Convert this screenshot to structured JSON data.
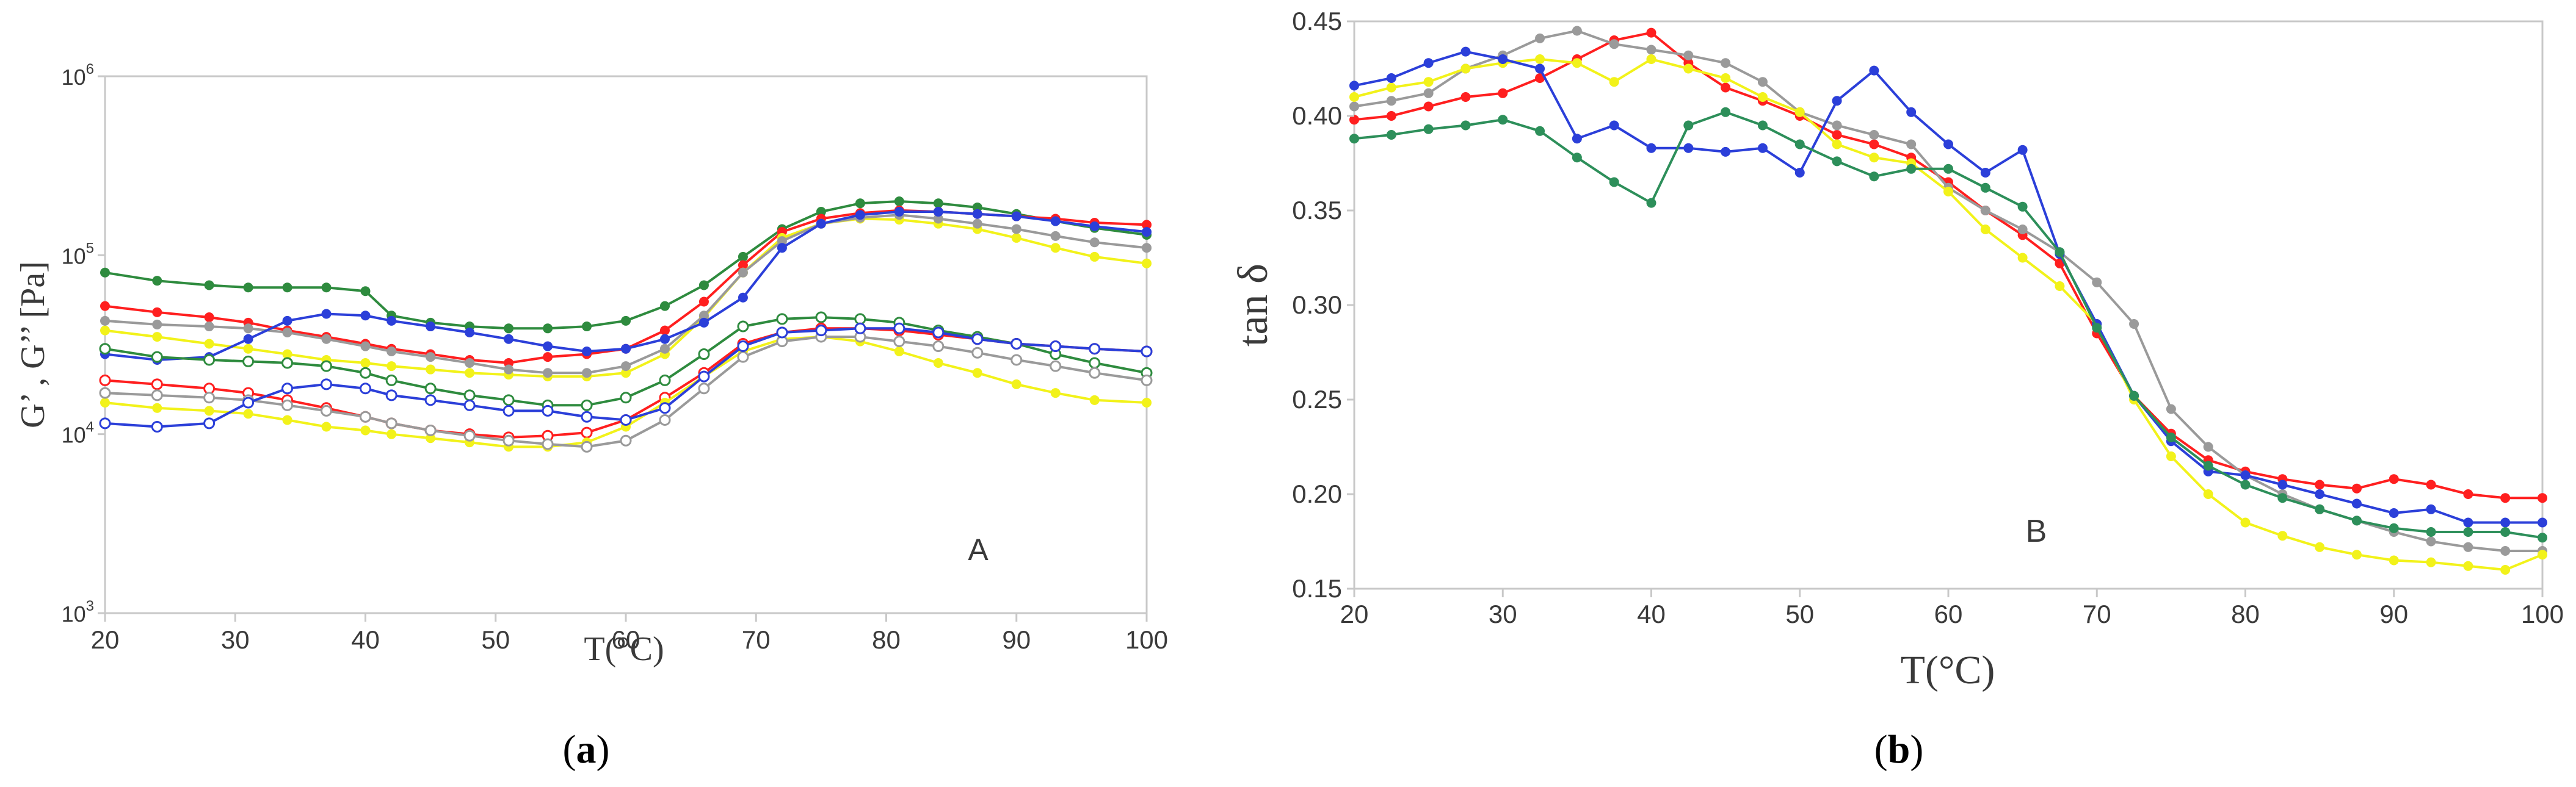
{
  "colors": {
    "green": "#2e8b3e",
    "red": "#ff1f1f",
    "yellow": "#f2f21a",
    "gray": "#9a9a9a",
    "blue": "#2b3fd9",
    "teal_green": "#2d8f5a"
  },
  "chart_data": [
    {
      "id": "a",
      "type": "line",
      "yscale": "log",
      "panel_letter": "A",
      "caption": {
        "open": "(",
        "letter": "a",
        "close": ")"
      },
      "xlabel": "T(°C)",
      "ylabel": "G’ , G’’ [Pa]",
      "xlim": [
        20,
        100
      ],
      "ylim": [
        1000,
        1000000
      ],
      "xticks": [
        "20",
        "30",
        "40",
        "50",
        "60",
        "70",
        "80",
        "90",
        "100"
      ],
      "yticks": [
        {
          "value": 1000,
          "base": "10",
          "exp": "3"
        },
        {
          "value": 10000,
          "base": "10",
          "exp": "4"
        },
        {
          "value": 100000,
          "base": "10",
          "exp": "5"
        },
        {
          "value": 1000000,
          "base": "10",
          "exp": "6"
        }
      ],
      "series": [
        {
          "name": "G' green",
          "color": "green",
          "marker": "filled",
          "x": [
            20,
            24,
            28,
            31,
            34,
            37,
            40,
            42,
            45,
            48,
            51,
            54,
            57,
            60,
            63,
            66,
            69,
            72,
            75,
            78,
            81,
            84,
            87,
            90,
            93,
            96,
            100
          ],
          "y": [
            80000,
            72000,
            68000,
            66000,
            66000,
            66000,
            63000,
            46000,
            42000,
            40000,
            39000,
            39000,
            40000,
            43000,
            52000,
            68000,
            98000,
            140000,
            175000,
            195000,
            200000,
            195000,
            185000,
            170000,
            155000,
            142000,
            130000
          ]
        },
        {
          "name": "G' red",
          "color": "red",
          "marker": "filled",
          "x": [
            20,
            24,
            28,
            31,
            34,
            37,
            40,
            42,
            45,
            48,
            51,
            54,
            57,
            60,
            63,
            66,
            69,
            72,
            75,
            78,
            81,
            84,
            87,
            90,
            93,
            96,
            100
          ],
          "y": [
            52000,
            48000,
            45000,
            42000,
            38000,
            35000,
            32000,
            30000,
            28000,
            26000,
            25000,
            27000,
            28000,
            30000,
            38000,
            55000,
            88000,
            135000,
            160000,
            172000,
            178000,
            175000,
            170000,
            165000,
            160000,
            152000,
            148000
          ]
        },
        {
          "name": "G' yellow",
          "color": "yellow",
          "marker": "filled",
          "x": [
            20,
            24,
            28,
            31,
            34,
            37,
            40,
            42,
            45,
            48,
            51,
            54,
            57,
            60,
            63,
            66,
            69,
            72,
            75,
            78,
            81,
            84,
            87,
            90,
            93,
            96,
            100
          ],
          "y": [
            38000,
            35000,
            32000,
            30000,
            28000,
            26000,
            25000,
            24000,
            23000,
            22000,
            21500,
            21000,
            21000,
            22000,
            28000,
            45000,
            80000,
            125000,
            150000,
            160000,
            158000,
            150000,
            140000,
            125000,
            110000,
            98000,
            90000
          ]
        },
        {
          "name": "G' gray",
          "color": "gray",
          "marker": "filled",
          "x": [
            20,
            24,
            28,
            31,
            34,
            37,
            40,
            42,
            45,
            48,
            51,
            54,
            57,
            60,
            63,
            66,
            69,
            72,
            75,
            78,
            81,
            84,
            87,
            90,
            93,
            96,
            100
          ],
          "y": [
            43000,
            41000,
            40000,
            39000,
            37000,
            34000,
            31000,
            29000,
            27000,
            25000,
            23000,
            22000,
            22000,
            24000,
            30000,
            46000,
            80000,
            120000,
            150000,
            162000,
            168000,
            160000,
            150000,
            140000,
            128000,
            118000,
            110000
          ]
        },
        {
          "name": "G' blue",
          "color": "blue",
          "marker": "filled",
          "x": [
            20,
            24,
            28,
            31,
            34,
            37,
            40,
            42,
            45,
            48,
            51,
            54,
            57,
            60,
            63,
            66,
            69,
            72,
            75,
            78,
            81,
            84,
            87,
            90,
            93,
            96,
            100
          ],
          "y": [
            28000,
            26000,
            27000,
            34000,
            43000,
            47000,
            46000,
            43000,
            40000,
            37000,
            34000,
            31000,
            29000,
            30000,
            34000,
            42000,
            58000,
            110000,
            150000,
            168000,
            175000,
            175000,
            170000,
            165000,
            155000,
            145000,
            135000
          ]
        },
        {
          "name": "G'' green",
          "color": "green",
          "marker": "open",
          "x": [
            20,
            24,
            28,
            31,
            34,
            37,
            40,
            42,
            45,
            48,
            51,
            54,
            57,
            60,
            63,
            66,
            69,
            72,
            75,
            78,
            81,
            84,
            87,
            90,
            93,
            96,
            100
          ],
          "y": [
            30000,
            27000,
            26000,
            25500,
            25000,
            24000,
            22000,
            20000,
            18000,
            16500,
            15500,
            14500,
            14500,
            16000,
            20000,
            28000,
            40000,
            44000,
            45000,
            44000,
            42000,
            38000,
            35000,
            32000,
            28000,
            25000,
            22000
          ]
        },
        {
          "name": "G'' red",
          "color": "red",
          "marker": "open",
          "x": [
            20,
            24,
            28,
            31,
            34,
            37,
            40,
            42,
            45,
            48,
            51,
            54,
            57,
            60,
            63,
            66,
            69,
            72,
            75,
            78,
            81,
            84,
            87,
            90,
            93,
            96,
            100
          ],
          "y": [
            20000,
            19000,
            18000,
            17000,
            15500,
            14000,
            12500,
            11500,
            10500,
            10000,
            9600,
            9800,
            10200,
            12000,
            16000,
            22000,
            32000,
            37000,
            39000,
            39000,
            38000,
            36000,
            34000,
            32000,
            31000,
            30000,
            29000
          ]
        },
        {
          "name": "G'' yellow",
          "color": "yellow",
          "marker": "filled",
          "x": [
            20,
            24,
            28,
            31,
            34,
            37,
            40,
            42,
            45,
            48,
            51,
            54,
            57,
            60,
            63,
            66,
            69,
            72,
            75,
            78,
            81,
            84,
            87,
            90,
            93,
            96,
            100
          ],
          "y": [
            15000,
            14000,
            13500,
            13000,
            12000,
            11000,
            10500,
            10000,
            9500,
            9000,
            8500,
            8500,
            9000,
            11000,
            15000,
            21000,
            29000,
            34000,
            35000,
            33000,
            29000,
            25000,
            22000,
            19000,
            17000,
            15500,
            15000
          ]
        },
        {
          "name": "G'' gray",
          "color": "gray",
          "marker": "open",
          "x": [
            20,
            24,
            28,
            31,
            34,
            37,
            40,
            42,
            45,
            48,
            51,
            54,
            57,
            60,
            63,
            66,
            69,
            72,
            75,
            78,
            81,
            84,
            87,
            90,
            93,
            96,
            100
          ],
          "y": [
            17000,
            16500,
            16000,
            15500,
            14500,
            13500,
            12500,
            11500,
            10500,
            9800,
            9200,
            8800,
            8500,
            9200,
            12000,
            18000,
            27000,
            33000,
            35000,
            35000,
            33000,
            31000,
            28500,
            26000,
            24000,
            22000,
            20000
          ]
        },
        {
          "name": "G'' blue",
          "color": "blue",
          "marker": "open",
          "x": [
            20,
            24,
            28,
            31,
            34,
            37,
            40,
            42,
            45,
            48,
            51,
            54,
            57,
            60,
            63,
            66,
            69,
            72,
            75,
            78,
            81,
            84,
            87,
            90,
            93,
            96,
            100
          ],
          "y": [
            11500,
            11000,
            11500,
            15000,
            18000,
            19000,
            18000,
            16500,
            15500,
            14500,
            13500,
            13500,
            12500,
            12000,
            14000,
            21000,
            31000,
            37000,
            38000,
            39000,
            39000,
            37000,
            34000,
            32000,
            31000,
            30000,
            29000
          ]
        }
      ]
    },
    {
      "id": "b",
      "type": "line",
      "yscale": "linear",
      "panel_letter": "B",
      "caption": {
        "open": "(",
        "letter": "b",
        "close": ")"
      },
      "xlabel": "T(°C)",
      "ylabel": "tan δ",
      "xlim": [
        20,
        100
      ],
      "ylim": [
        0.15,
        0.45
      ],
      "xticks": [
        "20",
        "30",
        "40",
        "50",
        "60",
        "70",
        "80",
        "90",
        "100"
      ],
      "yticks": [
        "0.15",
        "0.20",
        "0.25",
        "0.30",
        "0.35",
        "0.40",
        "0.45"
      ],
      "series": [
        {
          "name": "red",
          "color": "red",
          "x": [
            20,
            22.5,
            25,
            27.5,
            30,
            32.5,
            35,
            37.5,
            40,
            42.5,
            45,
            47.5,
            50,
            52.5,
            55,
            57.5,
            60,
            62.5,
            65,
            67.5,
            70,
            72.5,
            75,
            77.5,
            80,
            82.5,
            85,
            87.5,
            90,
            92.5,
            95,
            97.5,
            100
          ],
          "y": [
            0.398,
            0.4,
            0.405,
            0.41,
            0.412,
            0.42,
            0.43,
            0.44,
            0.444,
            0.428,
            0.415,
            0.408,
            0.4,
            0.39,
            0.385,
            0.378,
            0.365,
            0.35,
            0.337,
            0.322,
            0.285,
            0.252,
            0.232,
            0.218,
            0.212,
            0.208,
            0.205,
            0.203,
            0.208,
            0.205,
            0.2,
            0.198,
            0.198
          ]
        },
        {
          "name": "gray",
          "color": "gray",
          "x": [
            20,
            22.5,
            25,
            27.5,
            30,
            32.5,
            35,
            37.5,
            40,
            42.5,
            45,
            47.5,
            50,
            52.5,
            55,
            57.5,
            60,
            62.5,
            65,
            67.5,
            70,
            72.5,
            75,
            77.5,
            80,
            82.5,
            85,
            87.5,
            90,
            92.5,
            95,
            97.5,
            100
          ],
          "y": [
            0.405,
            0.408,
            0.412,
            0.425,
            0.432,
            0.441,
            0.445,
            0.438,
            0.435,
            0.432,
            0.428,
            0.418,
            0.402,
            0.395,
            0.39,
            0.385,
            0.362,
            0.35,
            0.34,
            0.328,
            0.312,
            0.29,
            0.245,
            0.225,
            0.21,
            0.2,
            0.192,
            0.186,
            0.18,
            0.175,
            0.172,
            0.17,
            0.17
          ]
        },
        {
          "name": "yellow",
          "color": "yellow",
          "x": [
            20,
            22.5,
            25,
            27.5,
            30,
            32.5,
            35,
            37.5,
            40,
            42.5,
            45,
            47.5,
            50,
            52.5,
            55,
            57.5,
            60,
            62.5,
            65,
            67.5,
            70,
            72.5,
            75,
            77.5,
            80,
            82.5,
            85,
            87.5,
            90,
            92.5,
            95,
            97.5,
            100
          ],
          "y": [
            0.41,
            0.415,
            0.418,
            0.425,
            0.428,
            0.43,
            0.428,
            0.418,
            0.43,
            0.425,
            0.42,
            0.41,
            0.402,
            0.385,
            0.378,
            0.375,
            0.36,
            0.34,
            0.325,
            0.31,
            0.29,
            0.25,
            0.22,
            0.2,
            0.185,
            0.178,
            0.172,
            0.168,
            0.165,
            0.164,
            0.162,
            0.16,
            0.168
          ]
        },
        {
          "name": "blue",
          "color": "blue",
          "x": [
            20,
            22.5,
            25,
            27.5,
            30,
            32.5,
            35,
            37.5,
            40,
            42.5,
            45,
            47.5,
            50,
            52.5,
            55,
            57.5,
            60,
            62.5,
            65,
            67.5,
            70,
            72.5,
            75,
            77.5,
            80,
            82.5,
            85,
            87.5,
            90,
            92.5,
            95,
            97.5,
            100
          ],
          "y": [
            0.416,
            0.42,
            0.428,
            0.434,
            0.43,
            0.425,
            0.388,
            0.395,
            0.383,
            0.383,
            0.381,
            0.383,
            0.37,
            0.408,
            0.424,
            0.402,
            0.385,
            0.37,
            0.382,
            0.327,
            0.29,
            0.252,
            0.228,
            0.212,
            0.21,
            0.205,
            0.2,
            0.195,
            0.19,
            0.192,
            0.185,
            0.185,
            0.185
          ]
        },
        {
          "name": "green",
          "color": "teal_green",
          "x": [
            20,
            22.5,
            25,
            27.5,
            30,
            32.5,
            35,
            37.5,
            40,
            42.5,
            45,
            47.5,
            50,
            52.5,
            55,
            57.5,
            60,
            62.5,
            65,
            67.5,
            70,
            72.5,
            75,
            77.5,
            80,
            82.5,
            85,
            87.5,
            90,
            92.5,
            95,
            97.5,
            100
          ],
          "y": [
            0.388,
            0.39,
            0.393,
            0.395,
            0.398,
            0.392,
            0.378,
            0.365,
            0.354,
            0.395,
            0.402,
            0.395,
            0.385,
            0.376,
            0.368,
            0.372,
            0.372,
            0.362,
            0.352,
            0.328,
            0.288,
            0.252,
            0.23,
            0.215,
            0.205,
            0.198,
            0.192,
            0.186,
            0.182,
            0.18,
            0.18,
            0.18,
            0.177
          ]
        }
      ]
    }
  ]
}
